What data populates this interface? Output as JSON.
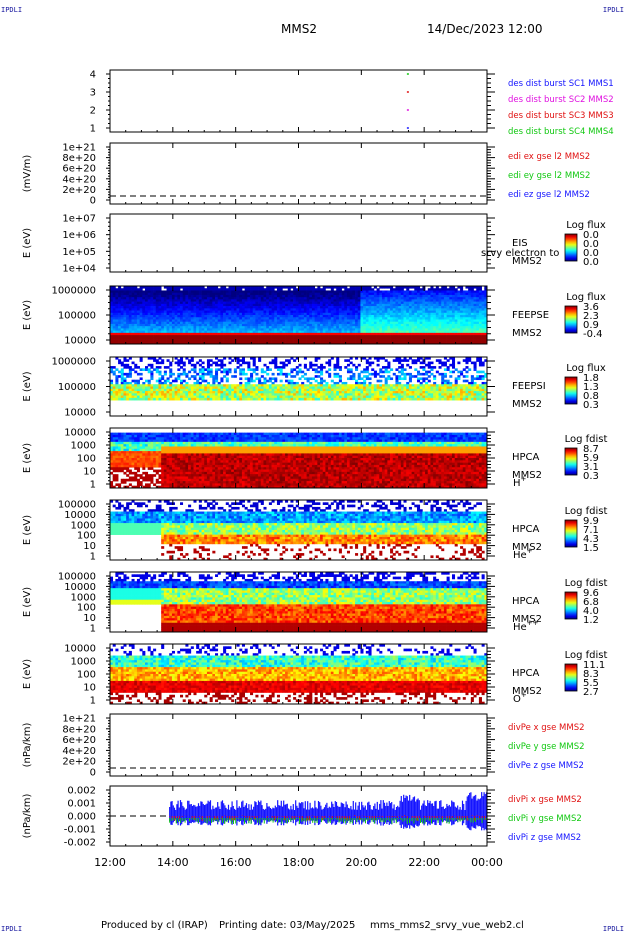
{
  "header": {
    "title": "MMS2",
    "datetime": "14/Dec/2023 12:00"
  },
  "corners": {
    "tl": "IPDLI",
    "tr": "IPDLI",
    "bl": "IPDLI",
    "br": "IPDLI"
  },
  "footer": {
    "produced_by": "Produced by cl (IRAP)",
    "printing_date": "Printing date: 03/May/2025",
    "script": "mms_mms2_srvy_vue_web2.cl"
  },
  "colors": {
    "blue": "#1515ff",
    "magenta": "#e010e0",
    "red": "#e01010",
    "green": "#10c810",
    "dark_red": "#b00000"
  },
  "chart_data": {
    "type": "spectrogram-stack",
    "x_ticks": [
      "12:00",
      "14:00",
      "16:00",
      "18:00",
      "20:00",
      "22:00",
      "00:00"
    ],
    "x_range_hours": [
      12,
      24
    ],
    "panels": [
      {
        "id": "burst",
        "ylabel": "",
        "ytick_labels": [
          "4",
          "3",
          "2",
          "1"
        ],
        "right_labels": [
          {
            "text": "des dist burst SC1 MMS1",
            "color": "blue"
          },
          {
            "text": "des dist burst SC2 MMS2",
            "color": "magenta"
          },
          {
            "text": "des dist burst SC3 MMS3",
            "color": "red"
          },
          {
            "text": "des dist burst SC4 MMS4",
            "color": "green"
          }
        ],
        "burst_time_hours": 21.45
      },
      {
        "id": "edi",
        "ylabel": "(mV/m)",
        "ytick_labels": [
          "1e+21",
          "8e+20",
          "6e+20",
          "4e+20",
          "2e+20",
          "0"
        ],
        "right_labels": [
          {
            "text": "edi ex gse l2 MMS2",
            "color": "red"
          },
          {
            "text": "edi ey gse l2 MMS2",
            "color": "green"
          },
          {
            "text": "edi ez gse l2 MMS2",
            "color": "blue"
          }
        ]
      },
      {
        "id": "eis",
        "ylabel": "E (eV)",
        "ytick_labels": [
          "1e+07",
          "1e+06",
          "1e+05",
          "1e+04"
        ],
        "inst": "EIS",
        "inst_sub": "MMS2",
        "overlay": "srvy electron to",
        "cbar_title": "Log flux",
        "cbar_ticks": [
          "0.0",
          "0.0",
          "0.0",
          "0.0"
        ]
      },
      {
        "id": "feepse",
        "ylabel": "E (eV)",
        "ytick_labels": [
          "1000000",
          "100000",
          "10000"
        ],
        "inst": "FEEPSE",
        "inst_sub": "MMS2",
        "cbar_title": "Log flux",
        "cbar_ticks": [
          "3.6",
          "2.3",
          "0.9",
          "-0.4"
        ]
      },
      {
        "id": "feepsi",
        "ylabel": "E (eV)",
        "ytick_labels": [
          "1000000",
          "100000",
          "10000"
        ],
        "inst": "FEEPSI",
        "inst_sub": "MMS2",
        "cbar_title": "Log flux",
        "cbar_ticks": [
          "1.8",
          "1.3",
          "0.8",
          "0.3"
        ]
      },
      {
        "id": "hpca_h",
        "ylabel": "E (eV)",
        "ytick_labels": [
          "10000",
          "1000",
          "100",
          "10",
          "1"
        ],
        "inst": "HPCA",
        "inst_sub": "MMS2",
        "species": "H",
        "charge": "+",
        "cbar_title": "Log fdist",
        "cbar_ticks": [
          "8.7",
          "5.9",
          "3.1",
          "0.3"
        ]
      },
      {
        "id": "hpca_he1",
        "ylabel": "E (eV)",
        "ytick_labels": [
          "100000",
          "10000",
          "1000",
          "100",
          "10",
          "1"
        ],
        "inst": "HPCA",
        "inst_sub": "MMS2",
        "species": "He",
        "charge": "+",
        "cbar_title": "Log fdist",
        "cbar_ticks": [
          "9.9",
          "7.1",
          "4.3",
          "1.5"
        ]
      },
      {
        "id": "hpca_he2",
        "ylabel": "E (eV)",
        "ytick_labels": [
          "100000",
          "10000",
          "1000",
          "100",
          "10",
          "1"
        ],
        "inst": "HPCA",
        "inst_sub": "MMS2",
        "species": "He",
        "charge": "++",
        "cbar_title": "Log fdist",
        "cbar_ticks": [
          "9.6",
          "6.8",
          "4.0",
          "1.2"
        ]
      },
      {
        "id": "hpca_o",
        "ylabel": "E (eV)",
        "ytick_labels": [
          "10000",
          "1000",
          "100",
          "10",
          "1"
        ],
        "inst": "HPCA",
        "inst_sub": "MMS2",
        "species": "O",
        "charge": "+",
        "cbar_title": "Log fdist",
        "cbar_ticks": [
          "11.1",
          "8.3",
          "5.5",
          "2.7"
        ]
      },
      {
        "id": "divpe",
        "ylabel": "(nPa/km)",
        "ytick_labels": [
          "1e+21",
          "8e+20",
          "6e+20",
          "4e+20",
          "2e+20",
          "0"
        ],
        "right_labels": [
          {
            "text": "divPe x gse MMS2",
            "color": "red"
          },
          {
            "text": "divPe y gse MMS2",
            "color": "green"
          },
          {
            "text": "divPe z gse MMS2",
            "color": "blue"
          }
        ]
      },
      {
        "id": "divpi",
        "ylabel": "(nPa/km)",
        "ytick_labels": [
          "0.002",
          "0.001",
          "0.000",
          "-0.001",
          "-0.002"
        ],
        "yrange": [
          -0.0025,
          0.0025
        ],
        "data_start_hours": 13.9,
        "right_labels": [
          {
            "text": "divPi x gse MMS2",
            "color": "red"
          },
          {
            "text": "divPi y gse MMS2",
            "color": "green"
          },
          {
            "text": "divPi z gse MMS2",
            "color": "blue"
          }
        ]
      }
    ]
  }
}
